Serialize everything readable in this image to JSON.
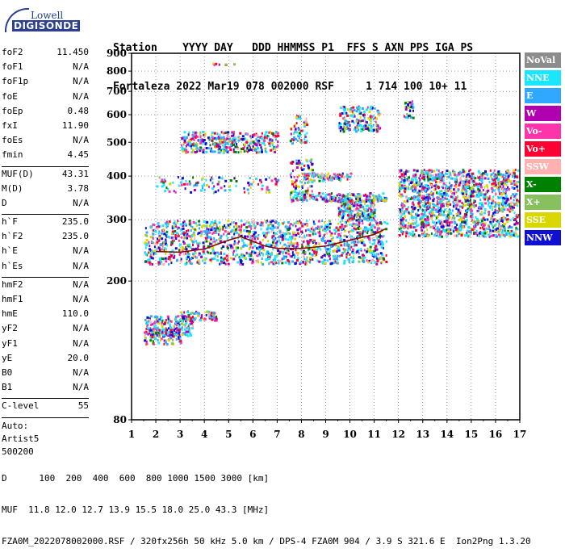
{
  "logo": {
    "line1": "Lowell",
    "line2": "DIGISONDE"
  },
  "header": {
    "line1": "Station    YYYY DAY   DDD HHMMSS P1  FFS S AXN PPS IGA PS",
    "line2": "Fortaleza 2022 Mar19 078 002000 RSF     1 714 100 10+ 11"
  },
  "params": {
    "group1": [
      [
        "foF2",
        "11.450"
      ],
      [
        "foF1",
        "N/A"
      ],
      [
        "foF1p",
        "N/A"
      ],
      [
        "foE",
        "N/A"
      ],
      [
        "foEp",
        "0.48"
      ],
      [
        "fxI",
        "11.90"
      ],
      [
        "foEs",
        "N/A"
      ],
      [
        "fmin",
        "4.45"
      ]
    ],
    "group2": [
      [
        "MUF(D)",
        "43.31"
      ],
      [
        "M(D)",
        "3.78"
      ],
      [
        "D",
        "N/A"
      ]
    ],
    "group3": [
      [
        "h`F",
        "235.0"
      ],
      [
        "h`F2",
        "235.0"
      ],
      [
        "h`E",
        "N/A"
      ],
      [
        "h`Es",
        "N/A"
      ]
    ],
    "group4": [
      [
        "hmF2",
        "N/A"
      ],
      [
        "hmF1",
        "N/A"
      ],
      [
        "hmE",
        "110.0"
      ],
      [
        "yF2",
        "N/A"
      ],
      [
        "yF1",
        "N/A"
      ],
      [
        "yE",
        "20.0"
      ],
      [
        "B0",
        "N/A"
      ],
      [
        "B1",
        "N/A"
      ]
    ],
    "group5": [
      [
        "C-level",
        "55"
      ]
    ]
  },
  "auto": {
    "line1": "Auto:",
    "line2": "Artist5",
    "line3": "500200"
  },
  "legend": [
    {
      "label": "NoVal",
      "color": "#8c8c8c"
    },
    {
      "label": "NNE",
      "color": "#1ae6ff"
    },
    {
      "label": "E",
      "color": "#30a8ff"
    },
    {
      "label": "W",
      "color": "#b000b0"
    },
    {
      "label": "Vo-",
      "color": "#ff33aa"
    },
    {
      "label": "Vo+",
      "color": "#ff0033"
    },
    {
      "label": "SSW",
      "color": "#ffb0b0"
    },
    {
      "label": "X-",
      "color": "#008000"
    },
    {
      "label": "X+",
      "color": "#88c060"
    },
    {
      "label": "SSE",
      "color": "#d8d800"
    },
    {
      "label": "NNW",
      "color": "#1010d0"
    }
  ],
  "footer": {
    "line1": "D      100  200  400  600  800 1000 1500 3000 [km]",
    "line2": "MUF  11.8 12.0 12.7 13.9 15.5 18.0 25.0 43.3 [MHz]",
    "line3": "FZA0M_2022078002000.RSF / 320fx256h 50 kHz 5.0 km / DPS-4 FZA0M 904 / 3.9 S 321.6 E  Ion2Png 1.3.20"
  },
  "chart_data": {
    "type": "scatter",
    "xlabel": "",
    "ylabel": "",
    "xlim": [
      1,
      17
    ],
    "ylim": [
      80,
      900
    ],
    "x_ticks": [
      "1",
      "2",
      "3",
      "4",
      "5",
      "6",
      "7",
      "8",
      "9",
      "10",
      "11",
      "12",
      "13",
      "14",
      "15",
      "16",
      "17"
    ],
    "y_ticks": [
      "80",
      "200",
      "300",
      "400",
      "500",
      "600",
      "700",
      "800",
      "900"
    ],
    "y_scale": "log",
    "grid": true,
    "legend_position": "right",
    "trace_color": "#8b0000",
    "trace": [
      [
        2.0,
        243
      ],
      [
        3.0,
        242
      ],
      [
        4.0,
        247
      ],
      [
        5.0,
        262
      ],
      [
        5.5,
        268
      ],
      [
        6.0,
        260
      ],
      [
        6.5,
        252
      ],
      [
        7.0,
        248
      ],
      [
        8.0,
        248
      ],
      [
        9.0,
        252
      ],
      [
        10.0,
        262
      ],
      [
        11.0,
        272
      ],
      [
        11.45,
        282
      ]
    ],
    "clusters": [
      {
        "x": [
          1.5,
          11.5
        ],
        "y": [
          225,
          300
        ],
        "n": 1400
      },
      {
        "x": [
          9.5,
          11.0
        ],
        "y": [
          300,
          345
        ],
        "n": 250
      },
      {
        "x": [
          7.5,
          11.5
        ],
        "y": [
          340,
          360
        ],
        "n": 180
      },
      {
        "x": [
          8.0,
          10.0
        ],
        "y": [
          390,
          410
        ],
        "n": 80
      },
      {
        "x": [
          7.5,
          8.5
        ],
        "y": [
          360,
          450
        ],
        "n": 90
      },
      {
        "x": [
          12.0,
          16.9
        ],
        "y": [
          270,
          420
        ],
        "n": 1500
      },
      {
        "x": [
          3.0,
          7.0
        ],
        "y": [
          470,
          540
        ],
        "n": 400
      },
      {
        "x": [
          7.5,
          8.2
        ],
        "y": [
          500,
          600
        ],
        "n": 60
      },
      {
        "x": [
          9.5,
          11.2
        ],
        "y": [
          540,
          640
        ],
        "n": 180
      },
      {
        "x": [
          12.2,
          12.6
        ],
        "y": [
          590,
          660
        ],
        "n": 30
      },
      {
        "x": [
          1.5,
          3.5
        ],
        "y": [
          140,
          160
        ],
        "n": 200
      },
      {
        "x": [
          3.0,
          4.5
        ],
        "y": [
          155,
          165
        ],
        "n": 80
      },
      {
        "x": [
          1.5,
          3.0
        ],
        "y": [
          132,
          146
        ],
        "n": 90
      },
      {
        "x": [
          2.0,
          7.0
        ],
        "y": [
          360,
          400
        ],
        "n": 110
      },
      {
        "x": [
          4.2,
          5.2
        ],
        "y": [
          838,
          848
        ],
        "n": 8
      }
    ]
  }
}
